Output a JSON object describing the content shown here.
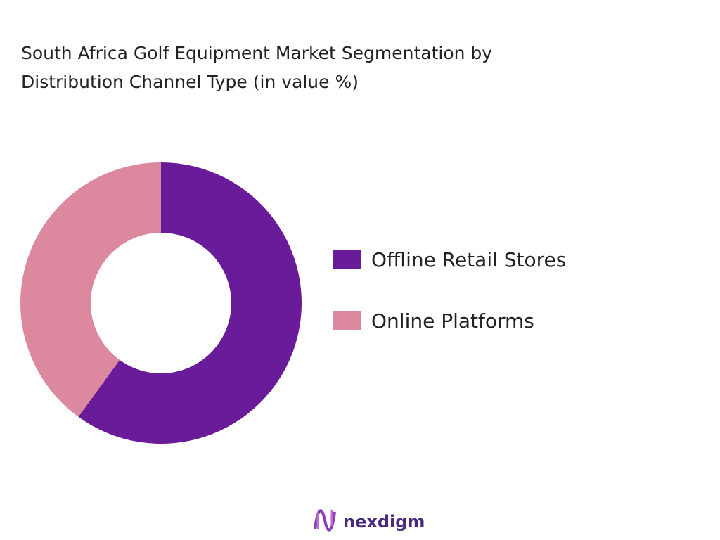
{
  "chart_data": {
    "type": "donut",
    "title": "South Africa Golf Equipment Market Segmentation by Distribution Channel Type (in value %)",
    "categories": [
      "Offline Retail Stores",
      "Online Platforms"
    ],
    "values": [
      60,
      40
    ],
    "colors": [
      "#6a1b9a",
      "#dc899f"
    ],
    "legend": "right"
  },
  "logo": "nexdigm"
}
